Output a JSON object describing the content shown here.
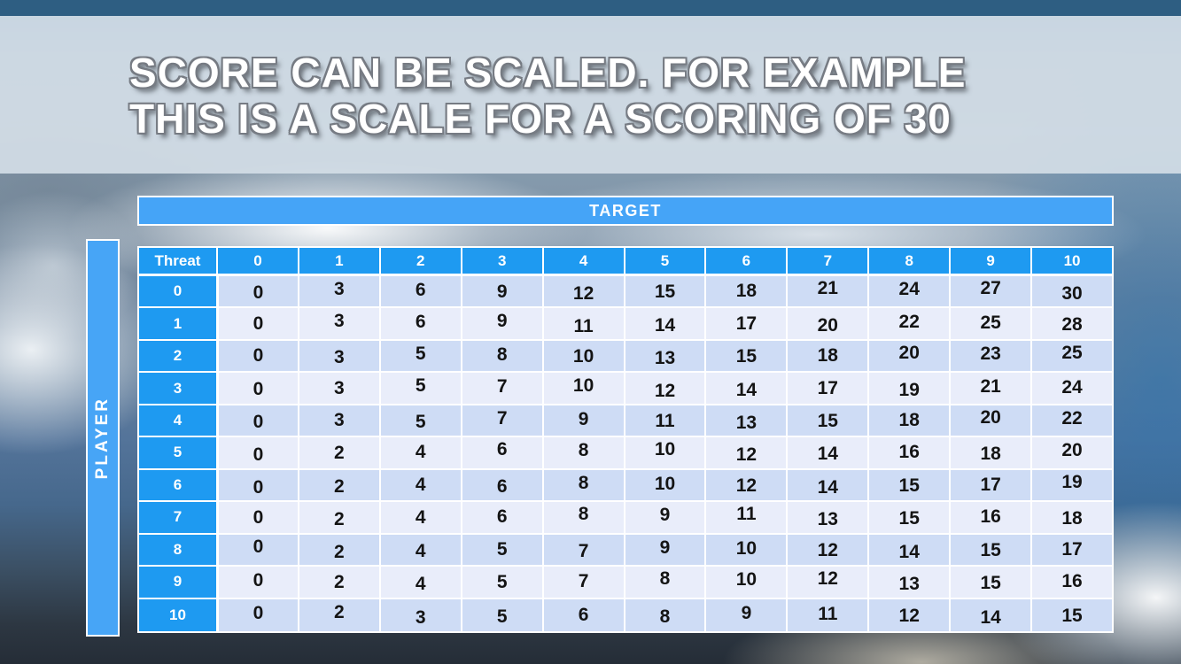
{
  "title": {
    "line1": "SCORE CAN BE SCALED. FOR EXAMPLE",
    "line2": "THIS IS A SCALE FOR A SCORING OF 30"
  },
  "table": {
    "top_axis_label": "TARGET",
    "left_axis_label": "PLAYER",
    "corner_label": "Threat",
    "column_headers": [
      "0",
      "1",
      "2",
      "3",
      "4",
      "5",
      "6",
      "7",
      "8",
      "9",
      "10"
    ],
    "row_headers": [
      "0",
      "1",
      "2",
      "3",
      "4",
      "5",
      "6",
      "7",
      "8",
      "9",
      "10"
    ]
  },
  "chart_data": {
    "type": "table",
    "title": "Scale for a scoring of 30",
    "x_axis_label": "TARGET",
    "y_axis_label": "PLAYER",
    "corner_label": "Threat",
    "columns": [
      0,
      1,
      2,
      3,
      4,
      5,
      6,
      7,
      8,
      9,
      10
    ],
    "row_labels": [
      0,
      1,
      2,
      3,
      4,
      5,
      6,
      7,
      8,
      9,
      10
    ],
    "rows": [
      [
        0,
        3,
        6,
        9,
        12,
        15,
        18,
        21,
        24,
        27,
        30
      ],
      [
        0,
        3,
        6,
        9,
        11,
        14,
        17,
        20,
        22,
        25,
        28
      ],
      [
        0,
        3,
        5,
        8,
        10,
        13,
        15,
        18,
        20,
        23,
        25
      ],
      [
        0,
        3,
        5,
        7,
        10,
        12,
        14,
        17,
        19,
        21,
        24
      ],
      [
        0,
        3,
        5,
        7,
        9,
        11,
        13,
        15,
        18,
        20,
        22
      ],
      [
        0,
        2,
        4,
        6,
        8,
        10,
        12,
        14,
        16,
        18,
        20
      ],
      [
        0,
        2,
        4,
        6,
        8,
        10,
        12,
        14,
        15,
        17,
        19
      ],
      [
        0,
        2,
        4,
        6,
        8,
        9,
        11,
        13,
        15,
        16,
        18
      ],
      [
        0,
        2,
        4,
        5,
        7,
        9,
        10,
        12,
        14,
        15,
        17
      ],
      [
        0,
        2,
        4,
        5,
        7,
        8,
        10,
        12,
        13,
        15,
        16
      ],
      [
        0,
        2,
        3,
        5,
        6,
        8,
        9,
        11,
        12,
        14,
        15
      ]
    ]
  },
  "colors": {
    "top_strip": "#2e5e82",
    "axis_bar_blue": "#45a4f7",
    "header_cell_blue": "#1e9af1",
    "row_band_even": "#cedcf5",
    "row_band_odd": "#e9edfa",
    "title_text": "#ffffff",
    "title_outline": "#767b83",
    "cell_text": "#141414"
  }
}
